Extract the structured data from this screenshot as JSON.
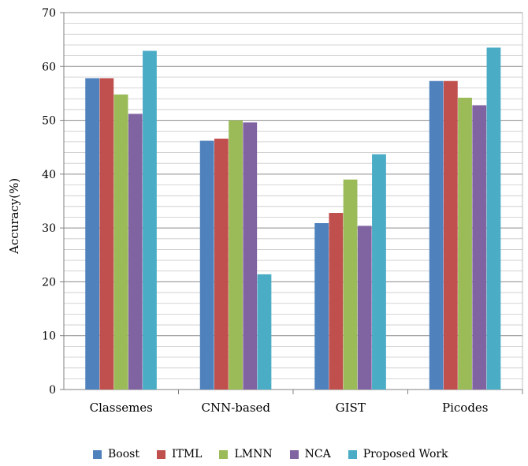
{
  "chart_data": {
    "type": "bar",
    "title": "",
    "xlabel": "",
    "ylabel": "Accuracy(%)",
    "ylim": [
      0,
      70
    ],
    "yticks": [
      0,
      10,
      20,
      30,
      40,
      50,
      60,
      70
    ],
    "grid": true,
    "legend_position": "bottom",
    "categories": [
      "Classemes",
      "CNN-based",
      "GIST",
      "Picodes"
    ],
    "series": [
      {
        "name": "Boost",
        "color": "#4F81BD",
        "values": [
          57.8,
          46.2,
          30.9,
          57.3
        ]
      },
      {
        "name": "ITML",
        "color": "#C0504D",
        "values": [
          57.8,
          46.6,
          32.8,
          57.3
        ]
      },
      {
        "name": "LMNN",
        "color": "#9BBB59",
        "values": [
          54.8,
          50.0,
          39.0,
          54.2
        ]
      },
      {
        "name": "NCA",
        "color": "#8064A2",
        "values": [
          51.2,
          49.6,
          30.4,
          52.8
        ]
      },
      {
        "name": "Proposed Work",
        "color": "#4BACC6",
        "values": [
          62.9,
          21.4,
          43.7,
          63.5
        ]
      }
    ]
  }
}
